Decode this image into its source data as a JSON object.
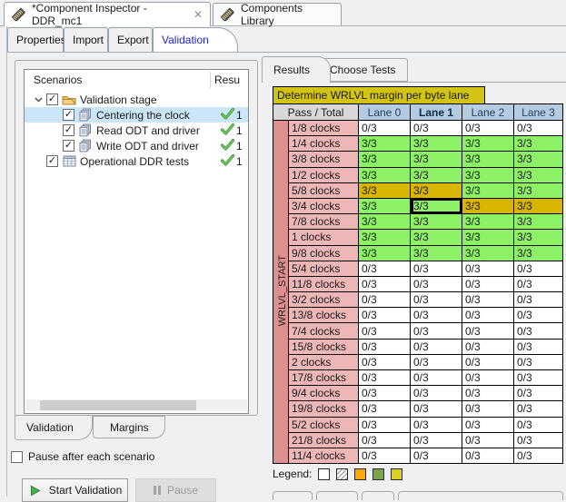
{
  "window": {
    "editor_tabs": [
      {
        "label": "*Component Inspector - DDR_mc1",
        "icon": "memory-module-icon",
        "closable": true,
        "selected": true
      },
      {
        "label": "Components Library",
        "icon": "memory-module-icon",
        "closable": false,
        "selected": false
      }
    ]
  },
  "view_tabs": {
    "items": [
      {
        "label": "Properties",
        "selected": false
      },
      {
        "label": "Import",
        "selected": false
      },
      {
        "label": "Export",
        "selected": false
      },
      {
        "label": "Validation",
        "selected": true
      }
    ]
  },
  "icons": {
    "close": "✕",
    "scroll_left": "‹",
    "scroll_right": "›",
    "check_glyph": "✓"
  },
  "scenarios": {
    "header": {
      "col1": "Scenarios",
      "col2": "Resu"
    },
    "items": [
      {
        "label": "Validation stage",
        "icon": "folder-icon",
        "checked": true,
        "expanded": true,
        "level": 0,
        "result": null,
        "selected": false
      },
      {
        "label": "Centering the clock",
        "icon": "scenario-icon",
        "checked": true,
        "level": 1,
        "result": "1",
        "selected": true
      },
      {
        "label": "Read ODT and driver",
        "icon": "scenario-icon",
        "checked": true,
        "level": 1,
        "result": "1",
        "selected": false
      },
      {
        "label": "Write ODT and driver",
        "icon": "scenario-icon",
        "checked": true,
        "level": 1,
        "result": "1",
        "selected": false
      },
      {
        "label": "Operational DDR tests",
        "icon": "table-icon",
        "checked": true,
        "level": 0,
        "result": "1",
        "selected": false
      }
    ],
    "bottom_tabs": [
      {
        "label": "Validation",
        "selected": true
      },
      {
        "label": "Margins",
        "selected": false
      }
    ],
    "pause_after_label": "Pause after each scenario",
    "pause_after_checked": false,
    "buttons": {
      "start": "Start Validation",
      "pause": "Pause",
      "pause_enabled": false
    }
  },
  "results": {
    "tabs": [
      {
        "label": "Results",
        "selected": true
      },
      {
        "label": "Choose Tests",
        "selected": false
      }
    ],
    "table": {
      "title": "Determine WRLVL margin per byte lane",
      "corner": "Pass / Total",
      "lanes": [
        "Lane 0",
        "Lane 1",
        "Lane 2",
        "Lane 3"
      ],
      "bold_lane": "Lane 1",
      "side_label": "WRLVL_START",
      "selected_cell": {
        "row_index": 5,
        "col_index": 1,
        "row_label": "3/4 clocks",
        "lane": "Lane 1"
      },
      "rows": [
        {
          "label": "1/8 clocks",
          "values": [
            "0/3",
            "0/3",
            "0/3",
            "0/3"
          ],
          "colors": [
            "w",
            "w",
            "w",
            "w"
          ]
        },
        {
          "label": "1/4 clocks",
          "values": [
            "3/3",
            "3/3",
            "3/3",
            "3/3"
          ],
          "colors": [
            "g",
            "g",
            "g",
            "g"
          ]
        },
        {
          "label": "3/8 clocks",
          "values": [
            "3/3",
            "3/3",
            "3/3",
            "3/3"
          ],
          "colors": [
            "g",
            "g",
            "g",
            "g"
          ]
        },
        {
          "label": "1/2 clocks",
          "values": [
            "3/3",
            "3/3",
            "3/3",
            "3/3"
          ],
          "colors": [
            "g",
            "g",
            "g",
            "g"
          ]
        },
        {
          "label": "5/8 clocks",
          "values": [
            "3/3",
            "3/3",
            "3/3",
            "3/3"
          ],
          "colors": [
            "y",
            "y",
            "g",
            "g"
          ]
        },
        {
          "label": "3/4 clocks",
          "values": [
            "3/3",
            "3/3",
            "3/3",
            "3/3"
          ],
          "colors": [
            "g",
            "g",
            "y",
            "y"
          ]
        },
        {
          "label": "7/8 clocks",
          "values": [
            "3/3",
            "3/3",
            "3/3",
            "3/3"
          ],
          "colors": [
            "g",
            "g",
            "g",
            "g"
          ]
        },
        {
          "label": "1 clocks",
          "values": [
            "3/3",
            "3/3",
            "3/3",
            "3/3"
          ],
          "colors": [
            "g",
            "g",
            "g",
            "g"
          ]
        },
        {
          "label": "9/8 clocks",
          "values": [
            "3/3",
            "3/3",
            "3/3",
            "3/3"
          ],
          "colors": [
            "g",
            "g",
            "g",
            "g"
          ]
        },
        {
          "label": "5/4 clocks",
          "values": [
            "0/3",
            "0/3",
            "0/3",
            "0/3"
          ],
          "colors": [
            "w",
            "w",
            "w",
            "w"
          ]
        },
        {
          "label": "11/8 clocks",
          "values": [
            "0/3",
            "0/3",
            "0/3",
            "0/3"
          ],
          "colors": [
            "w",
            "w",
            "w",
            "w"
          ]
        },
        {
          "label": "3/2 clocks",
          "values": [
            "0/3",
            "0/3",
            "0/3",
            "0/3"
          ],
          "colors": [
            "w",
            "w",
            "w",
            "w"
          ]
        },
        {
          "label": "13/8 clocks",
          "values": [
            "0/3",
            "0/3",
            "0/3",
            "0/3"
          ],
          "colors": [
            "w",
            "w",
            "w",
            "w"
          ]
        },
        {
          "label": "7/4 clocks",
          "values": [
            "0/3",
            "0/3",
            "0/3",
            "0/3"
          ],
          "colors": [
            "w",
            "w",
            "w",
            "w"
          ]
        },
        {
          "label": "15/8 clocks",
          "values": [
            "0/3",
            "0/3",
            "0/3",
            "0/3"
          ],
          "colors": [
            "w",
            "w",
            "w",
            "w"
          ]
        },
        {
          "label": "2 clocks",
          "values": [
            "0/3",
            "0/3",
            "0/3",
            "0/3"
          ],
          "colors": [
            "w",
            "w",
            "w",
            "w"
          ]
        },
        {
          "label": "17/8 clocks",
          "values": [
            "0/3",
            "0/3",
            "0/3",
            "0/3"
          ],
          "colors": [
            "w",
            "w",
            "w",
            "w"
          ]
        },
        {
          "label": "9/4 clocks",
          "values": [
            "0/3",
            "0/3",
            "0/3",
            "0/3"
          ],
          "colors": [
            "w",
            "w",
            "w",
            "w"
          ]
        },
        {
          "label": "19/8 clocks",
          "values": [
            "0/3",
            "0/3",
            "0/3",
            "0/3"
          ],
          "colors": [
            "w",
            "w",
            "w",
            "w"
          ]
        },
        {
          "label": "5/2 clocks",
          "values": [
            "0/3",
            "0/3",
            "0/3",
            "0/3"
          ],
          "colors": [
            "w",
            "w",
            "w",
            "w"
          ]
        },
        {
          "label": "21/8 clocks",
          "values": [
            "0/3",
            "0/3",
            "0/3",
            "0/3"
          ],
          "colors": [
            "w",
            "w",
            "w",
            "w"
          ]
        },
        {
          "label": "11/4 clocks",
          "values": [
            "0/3",
            "0/3",
            "0/3",
            "0/3"
          ],
          "colors": [
            "w",
            "w",
            "w",
            "w"
          ]
        }
      ]
    },
    "legend": {
      "label": "Legend:",
      "swatches": [
        "empty",
        "hatched",
        "orange",
        "green",
        "yellow"
      ]
    }
  },
  "colors": {
    "title_bg": "#d2c314",
    "lane_header_bg": "#b4cbe1",
    "corner_bg": "#d8d8d8",
    "row_label_bg": "#edb7b7",
    "side_col_bg": "#de9090",
    "cell_white": "#ffffff",
    "cell_green": "#8cf164",
    "cell_gold": "#d8b500",
    "selection_bg": "#cbe6f8",
    "legend_orange": "#ffa60a",
    "legend_green": "#7ca34f",
    "legend_yellow": "#dcd122"
  }
}
